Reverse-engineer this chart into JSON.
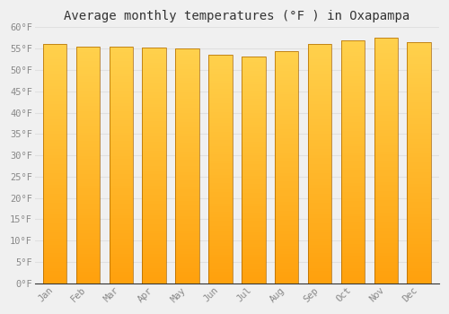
{
  "title": "Average monthly temperatures (°F ) in Oxapampa",
  "months": [
    "Jan",
    "Feb",
    "Mar",
    "Apr",
    "May",
    "Jun",
    "Jul",
    "Aug",
    "Sep",
    "Oct",
    "Nov",
    "Dec"
  ],
  "values": [
    56.0,
    55.5,
    55.5,
    55.2,
    55.0,
    53.6,
    53.2,
    54.5,
    56.0,
    57.0,
    57.5,
    56.5
  ],
  "ylim": [
    0,
    60
  ],
  "yticks": [
    0,
    5,
    10,
    15,
    20,
    25,
    30,
    35,
    40,
    45,
    50,
    55,
    60
  ],
  "bar_color_bottom": "#FFA500",
  "bar_color_mid": "#FFB800",
  "bar_color_top": "#FFD060",
  "bar_edge_color": "#CC8800",
  "background_color": "#F0F0F0",
  "grid_color": "#E0E0E0",
  "title_fontsize": 10,
  "tick_fontsize": 7.5,
  "tick_color": "#888888",
  "font_family": "monospace",
  "bar_width": 0.72
}
